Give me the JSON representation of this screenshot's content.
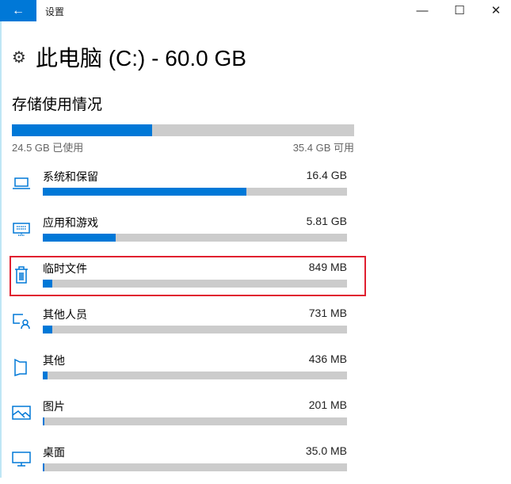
{
  "window": {
    "title": "设置",
    "back_icon": "arrow-left-icon"
  },
  "header": {
    "title": "此电脑 (C:) - 60.0 GB",
    "icon": "gear-icon"
  },
  "storage": {
    "heading": "存储使用情况",
    "used_label": "24.5 GB 已使用",
    "free_label": "35.4 GB 可用",
    "used_fraction": 0.41,
    "accent": "#0078d7"
  },
  "items": [
    {
      "label": "系统和保留",
      "size": "16.4 GB",
      "fraction": 0.67,
      "icon": "laptop-icon"
    },
    {
      "label": "应用和游戏",
      "size": "5.81 GB",
      "fraction": 0.24,
      "icon": "keyboard-monitor-icon"
    },
    {
      "label": "临时文件",
      "size": "849 MB",
      "fraction": 0.032,
      "icon": "trash-icon",
      "highlighted": true
    },
    {
      "label": "其他人员",
      "size": "731 MB",
      "fraction": 0.03,
      "icon": "user-monitor-icon"
    },
    {
      "label": "其他",
      "size": "436 MB",
      "fraction": 0.016,
      "icon": "folder-map-icon"
    },
    {
      "label": "图片",
      "size": "201 MB",
      "fraction": 0.006,
      "icon": "picture-icon"
    },
    {
      "label": "桌面",
      "size": "35.0 MB",
      "fraction": 0.003,
      "icon": "monitor-icon"
    }
  ]
}
